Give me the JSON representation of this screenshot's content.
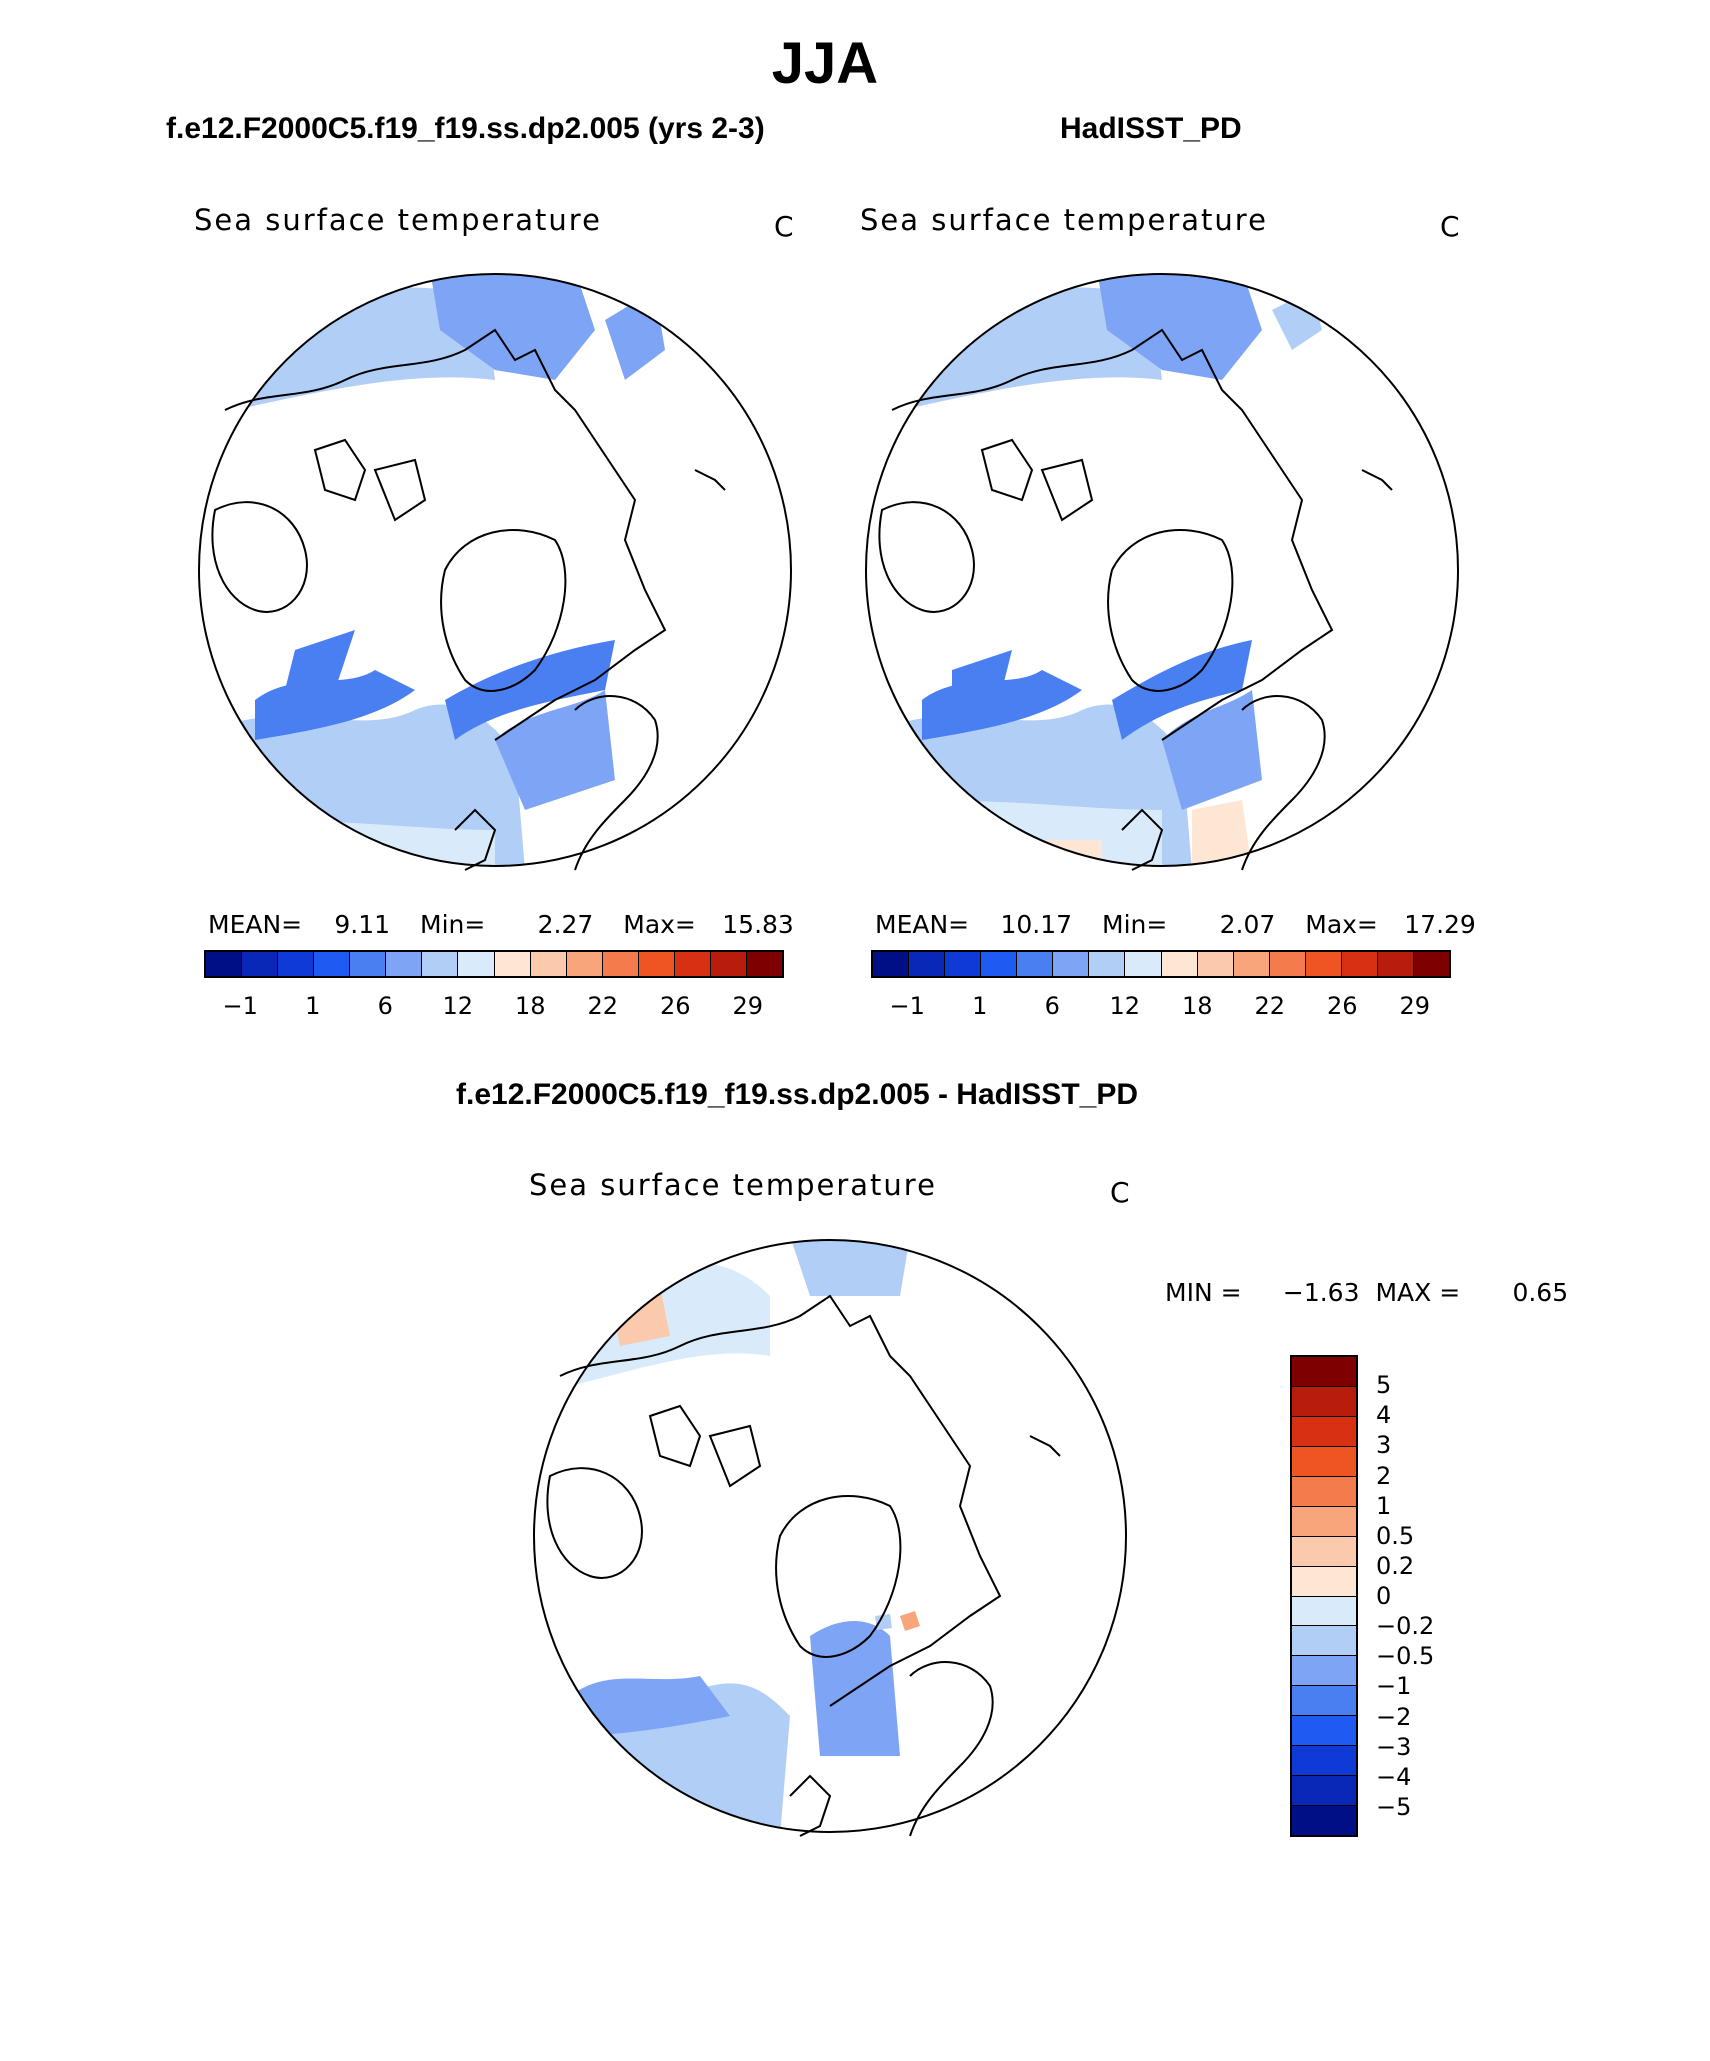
{
  "main_title": "JJA",
  "colors": {
    "abs_scale": [
      "#000f85",
      "#0a28b8",
      "#0f3ad6",
      "#1f5af2",
      "#4a7ff2",
      "#7ea5f5",
      "#b1cef7",
      "#d9ebfb",
      "#fde6d3",
      "#fbc9ac",
      "#f8a57c",
      "#f47c4c",
      "#ef5423",
      "#d83012",
      "#b81c0c",
      "#7e0000"
    ],
    "diff_scale": [
      "#7e0000",
      "#b81c0c",
      "#d83012",
      "#ef5423",
      "#f47c4c",
      "#f8a57c",
      "#fbc9ac",
      "#fde6d3",
      "#d9ebfb",
      "#b1cef7",
      "#7ea5f5",
      "#4a7ff2",
      "#1f5af2",
      "#0f3ad6",
      "#0a28b8",
      "#000f85"
    ],
    "land": "#ffffff",
    "coast": "#000000"
  },
  "panels": [
    {
      "id": "model",
      "title": "f.e12.F2000C5.f19_f19.ss.dp2.005 (yrs 2-3)",
      "variable": "Sea surface temperature",
      "units": "C",
      "stats": {
        "mean_label": "MEAN=",
        "mean": "9.11",
        "min_label": "Min=",
        "min": "2.27",
        "max_label": "Max=",
        "max": "15.83"
      },
      "ticks": [
        "−1",
        "1",
        "6",
        "12",
        "18",
        "22",
        "26",
        "29"
      ]
    },
    {
      "id": "obs",
      "title": "HadISST_PD",
      "variable": "Sea surface temperature",
      "units": "C",
      "stats": {
        "mean_label": "MEAN=",
        "mean": "10.17",
        "min_label": "Min=",
        "min": "2.07",
        "max_label": "Max=",
        "max": "17.29"
      },
      "ticks": [
        "−1",
        "1",
        "6",
        "12",
        "18",
        "22",
        "26",
        "29"
      ]
    }
  ],
  "diff_panel": {
    "title": "f.e12.F2000C5.f19_f19.ss.dp2.005 - HadISST_PD",
    "variable": "Sea surface temperature",
    "units": "C",
    "min_label": "MIN =",
    "min": "−1.63",
    "max_label": "MAX =",
    "max": "0.65",
    "ticks": [
      "5",
      "4",
      "3",
      "2",
      "1",
      "0.5",
      "0.2",
      "0",
      "−0.2",
      "−0.5",
      "−1",
      "−2",
      "−3",
      "−4",
      "−5"
    ]
  },
  "chart_data": [
    {
      "type": "heatmap",
      "title": "f.e12.F2000C5.f19_f19.ss.dp2.005 (yrs 2-3)",
      "variable": "Sea surface temperature",
      "units": "C",
      "projection": "north polar stereographic",
      "mean": 9.11,
      "min": 2.27,
      "max": 15.83,
      "colorbar_levels": [
        -1,
        1,
        6,
        12,
        18,
        22,
        26,
        29
      ]
    },
    {
      "type": "heatmap",
      "title": "HadISST_PD",
      "variable": "Sea surface temperature",
      "units": "C",
      "projection": "north polar stereographic",
      "mean": 10.17,
      "min": 2.07,
      "max": 17.29,
      "colorbar_levels": [
        -1,
        1,
        6,
        12,
        18,
        22,
        26,
        29
      ]
    },
    {
      "type": "heatmap",
      "title": "f.e12.F2000C5.f19_f19.ss.dp2.005 - HadISST_PD",
      "variable": "Sea surface temperature",
      "units": "C",
      "projection": "north polar stereographic",
      "min": -1.63,
      "max": 0.65,
      "colorbar_levels": [
        5,
        4,
        3,
        2,
        1,
        0.5,
        0.2,
        0,
        -0.2,
        -0.5,
        -1,
        -2,
        -3,
        -4,
        -5
      ]
    }
  ]
}
